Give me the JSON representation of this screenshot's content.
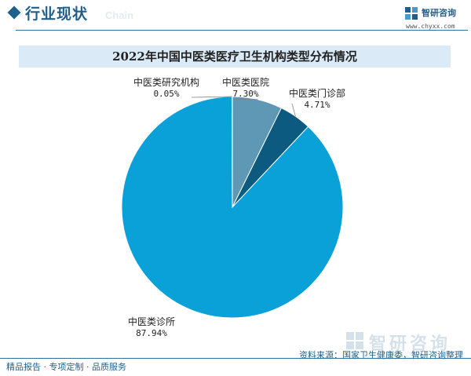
{
  "header": {
    "section_title": "行业现状",
    "section_watermark": "Chain",
    "logo_name": "智研咨询",
    "logo_url": "www.chyxx.com"
  },
  "chart_data": {
    "type": "pie",
    "title": "2022年中国中医类医疗卫生机构类型分布情况",
    "slices": [
      {
        "label": "中医类医院",
        "value": 7.3,
        "value_text": "7.30%",
        "color": "#5e98b4"
      },
      {
        "label": "中医类门诊部",
        "value": 4.71,
        "value_text": "4.71%",
        "color": "#0c5a80"
      },
      {
        "label": "中医类诊所",
        "value": 87.94,
        "value_text": "87.94%",
        "color": "#0aa0d8"
      },
      {
        "label": "中医类研究机构",
        "value": 0.05,
        "value_text": "0.05%",
        "color": "#7f9fb0"
      }
    ],
    "start_angle": "12 o'clock",
    "direction": "clockwise"
  },
  "source": "资料来源：国家卫生健康委，智研咨询整理",
  "watermark": "智研咨询",
  "footer": "精品报告 · 专项定制 · 品质服务"
}
